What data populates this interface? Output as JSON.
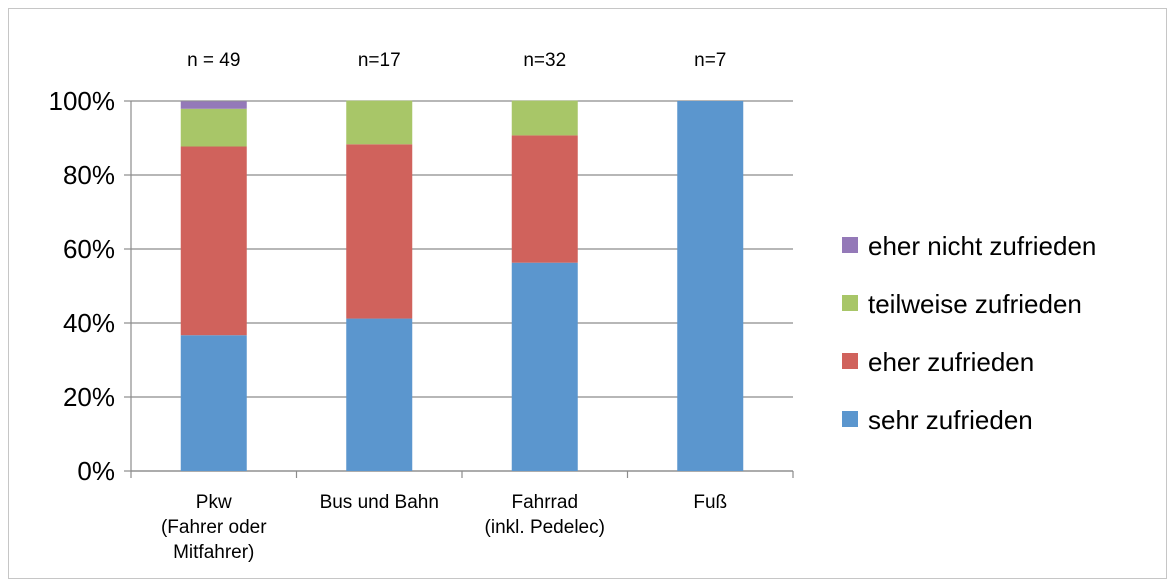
{
  "chart_data": {
    "type": "bar",
    "stacked": true,
    "categories": [
      "Pkw (Fahrer oder Mitfahrer)",
      "Bus und Bahn",
      "Fahrrad (inkl. Pedelec)",
      "Fuß"
    ],
    "category_label_lines": [
      [
        "Pkw",
        "(Fahrer oder",
        "Mitfahrer)"
      ],
      [
        "Bus und Bahn"
      ],
      [
        "Fahrrad",
        "(inkl. Pedelec)"
      ],
      [
        "Fuß"
      ]
    ],
    "sample_sizes": [
      "n = 49",
      "n=17",
      "n=32",
      "n=7"
    ],
    "series": [
      {
        "name": "sehr zufrieden",
        "color": "#5b96ce",
        "values": [
          36.7,
          41.2,
          56.3,
          100
        ]
      },
      {
        "name": "eher zufrieden",
        "color": "#d0625c",
        "values": [
          51.0,
          47.1,
          34.4,
          0
        ]
      },
      {
        "name": "teilweise zufrieden",
        "color": "#a8c668",
        "values": [
          10.2,
          11.8,
          9.4,
          0
        ]
      },
      {
        "name": "eher nicht zufrieden",
        "color": "#9479b8",
        "values": [
          2.0,
          0,
          0,
          0
        ]
      }
    ],
    "ylim": [
      0,
      100
    ],
    "yticks": [
      "0%",
      "20%",
      "40%",
      "60%",
      "80%",
      "100%"
    ],
    "grid": true,
    "legend_position": "right",
    "legend_order": [
      "eher nicht zufrieden",
      "teilweise zufrieden",
      "eher zufrieden",
      "sehr zufrieden"
    ],
    "xlabel": "",
    "ylabel": "",
    "title": ""
  }
}
